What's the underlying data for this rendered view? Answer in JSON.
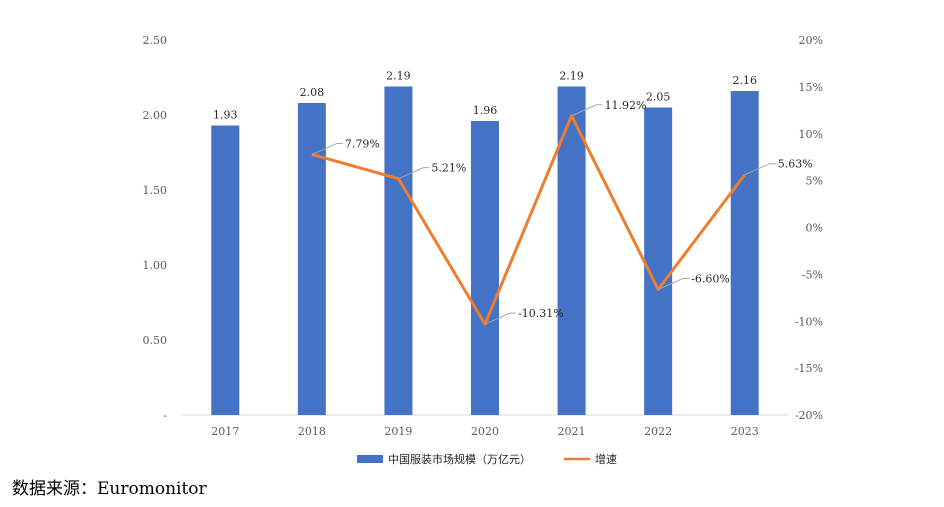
{
  "chart_data": {
    "type": "bar+line",
    "categories": [
      "2017",
      "2018",
      "2019",
      "2020",
      "2021",
      "2022",
      "2023"
    ],
    "series": [
      {
        "name": "中国服装市场规模（万亿元）",
        "type": "bar",
        "axis": "left",
        "color": "#4472c4",
        "values": [
          1.93,
          2.08,
          2.19,
          1.96,
          2.19,
          2.05,
          2.16
        ],
        "labels": [
          "1.93",
          "2.08",
          "2.19",
          "1.96",
          "2.19",
          "2.05",
          "2.16"
        ]
      },
      {
        "name": "增速",
        "type": "line",
        "axis": "right",
        "color": "#ed7d31",
        "values": [
          null,
          7.79,
          5.21,
          -10.31,
          11.92,
          -6.6,
          5.63
        ],
        "labels": [
          null,
          "7.79%",
          "5.21%",
          "-10.31%",
          "11.92%",
          "-6.60%",
          "5.63%"
        ]
      }
    ],
    "y_left": {
      "lim": [
        0,
        2.5
      ],
      "ticks": [
        0,
        0.5,
        1.0,
        1.5,
        2.0,
        2.5
      ],
      "tick_labels": [
        "-",
        "0.50",
        "1.00",
        "1.50",
        "2.00",
        "2.50"
      ]
    },
    "y_right": {
      "lim": [
        -20,
        20
      ],
      "ticks": [
        -20,
        -15,
        -10,
        -5,
        0,
        5,
        10,
        15,
        20
      ],
      "tick_labels": [
        "-20%",
        "-15%",
        "-10%",
        "-5%",
        "0%",
        "5%",
        "10%",
        "15%",
        "20%"
      ]
    },
    "grid": false,
    "legend_position": "bottom"
  },
  "source_text": "数据来源：Euromonitor"
}
